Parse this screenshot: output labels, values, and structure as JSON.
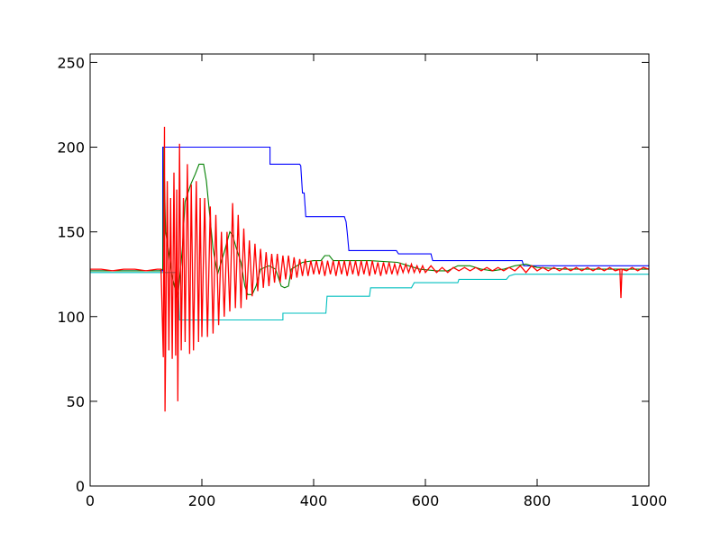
{
  "chart_data": {
    "type": "line",
    "title": "",
    "xlabel": "",
    "ylabel": "",
    "xlim": [
      0,
      1000
    ],
    "ylim": [
      0,
      255
    ],
    "xticks": [
      0,
      200,
      400,
      600,
      800,
      1000
    ],
    "yticks": [
      0,
      50,
      100,
      150,
      200,
      250
    ],
    "grid": false,
    "legend": "none",
    "series": [
      {
        "color": "#0000ff",
        "style": "step",
        "points": [
          [
            0,
            127
          ],
          [
            130,
            127
          ],
          [
            130,
            200
          ],
          [
            322,
            200
          ],
          [
            322,
            190
          ],
          [
            375,
            190
          ],
          [
            377,
            189
          ],
          [
            380,
            173
          ],
          [
            383,
            173
          ],
          [
            386,
            159
          ],
          [
            455,
            159
          ],
          [
            458,
            156
          ],
          [
            460,
            150
          ],
          [
            463,
            139
          ],
          [
            548,
            139
          ],
          [
            552,
            137
          ],
          [
            610,
            137
          ],
          [
            613,
            133
          ],
          [
            773,
            133
          ],
          [
            776,
            130
          ],
          [
            1000,
            130
          ]
        ]
      },
      {
        "color": "#00bfbf",
        "style": "step",
        "points": [
          [
            0,
            126
          ],
          [
            150,
            126
          ],
          [
            155,
            126
          ],
          [
            158,
            115
          ],
          [
            160,
            98
          ],
          [
            345,
            98
          ],
          [
            345,
            102
          ],
          [
            422,
            102
          ],
          [
            424,
            112
          ],
          [
            500,
            112
          ],
          [
            502,
            117
          ],
          [
            575,
            117
          ],
          [
            580,
            120
          ],
          [
            658,
            120
          ],
          [
            660,
            122
          ],
          [
            745,
            122
          ],
          [
            750,
            124
          ],
          [
            760,
            125
          ],
          [
            1000,
            125
          ]
        ]
      },
      {
        "color": "#008000",
        "style": "line",
        "points": [
          [
            0,
            127
          ],
          [
            125,
            127
          ],
          [
            130,
            128
          ],
          [
            132,
            200
          ],
          [
            135,
            150
          ],
          [
            140,
            140
          ],
          [
            146,
            125
          ],
          [
            155,
            112
          ],
          [
            158,
            115
          ],
          [
            165,
            140
          ],
          [
            170,
            168
          ],
          [
            180,
            178
          ],
          [
            188,
            184
          ],
          [
            195,
            190
          ],
          [
            203,
            190
          ],
          [
            208,
            180
          ],
          [
            214,
            160
          ],
          [
            220,
            140
          ],
          [
            228,
            125
          ],
          [
            240,
            138
          ],
          [
            250,
            150
          ],
          [
            255,
            148
          ],
          [
            262,
            140
          ],
          [
            270,
            132
          ],
          [
            277,
            118
          ],
          [
            282,
            113
          ],
          [
            290,
            113
          ],
          [
            297,
            118
          ],
          [
            305,
            128
          ],
          [
            320,
            130
          ],
          [
            332,
            128
          ],
          [
            342,
            118
          ],
          [
            348,
            117
          ],
          [
            355,
            118
          ],
          [
            360,
            128
          ],
          [
            380,
            132
          ],
          [
            400,
            133
          ],
          [
            413,
            133
          ],
          [
            420,
            136
          ],
          [
            428,
            136
          ],
          [
            435,
            133
          ],
          [
            500,
            133
          ],
          [
            550,
            132
          ],
          [
            570,
            130
          ],
          [
            590,
            128
          ],
          [
            620,
            127
          ],
          [
            640,
            127
          ],
          [
            658,
            130
          ],
          [
            680,
            130
          ],
          [
            700,
            128
          ],
          [
            720,
            127
          ],
          [
            740,
            128
          ],
          [
            760,
            130
          ],
          [
            780,
            131
          ],
          [
            800,
            129
          ],
          [
            850,
            128
          ],
          [
            900,
            128
          ],
          [
            1000,
            128
          ]
        ]
      },
      {
        "color": "#ff0000",
        "style": "line",
        "points": [
          [
            0,
            128
          ],
          [
            20,
            128
          ],
          [
            40,
            127
          ],
          [
            60,
            128
          ],
          [
            80,
            128
          ],
          [
            100,
            127
          ],
          [
            120,
            128
          ],
          [
            127,
            128
          ],
          [
            131,
            76
          ],
          [
            133,
            212
          ],
          [
            134,
            44
          ],
          [
            138,
            180
          ],
          [
            141,
            80
          ],
          [
            144,
            170
          ],
          [
            147,
            75
          ],
          [
            150,
            185
          ],
          [
            153,
            77
          ],
          [
            155,
            175
          ],
          [
            157,
            50
          ],
          [
            160,
            202
          ],
          [
            163,
            80
          ],
          [
            167,
            170
          ],
          [
            170,
            85
          ],
          [
            174,
            190
          ],
          [
            178,
            78
          ],
          [
            181,
            178
          ],
          [
            185,
            80
          ],
          [
            190,
            180
          ],
          [
            194,
            85
          ],
          [
            197,
            170
          ],
          [
            200,
            88
          ],
          [
            205,
            170
          ],
          [
            210,
            88
          ],
          [
            215,
            165
          ],
          [
            220,
            90
          ],
          [
            225,
            160
          ],
          [
            230,
            95
          ],
          [
            235,
            150
          ],
          [
            240,
            100
          ],
          [
            245,
            150
          ],
          [
            250,
            103
          ],
          [
            255,
            167
          ],
          [
            260,
            105
          ],
          [
            265,
            160
          ],
          [
            270,
            105
          ],
          [
            275,
            152
          ],
          [
            280,
            110
          ],
          [
            285,
            145
          ],
          [
            290,
            112
          ],
          [
            295,
            143
          ],
          [
            300,
            115
          ],
          [
            305,
            140
          ],
          [
            310,
            117
          ],
          [
            315,
            138
          ],
          [
            320,
            118
          ],
          [
            325,
            137
          ],
          [
            330,
            120
          ],
          [
            335,
            137
          ],
          [
            340,
            120
          ],
          [
            345,
            136
          ],
          [
            350,
            122
          ],
          [
            355,
            136
          ],
          [
            360,
            122
          ],
          [
            365,
            135
          ],
          [
            370,
            123
          ],
          [
            375,
            134
          ],
          [
            380,
            124
          ],
          [
            385,
            134
          ],
          [
            390,
            124
          ],
          [
            395,
            133
          ],
          [
            400,
            125
          ],
          [
            405,
            133
          ],
          [
            410,
            125
          ],
          [
            415,
            133
          ],
          [
            420,
            124
          ],
          [
            425,
            133
          ],
          [
            430,
            125
          ],
          [
            435,
            133
          ],
          [
            440,
            124
          ],
          [
            445,
            133
          ],
          [
            450,
            125
          ],
          [
            455,
            133
          ],
          [
            460,
            124
          ],
          [
            465,
            133
          ],
          [
            470,
            125
          ],
          [
            475,
            133
          ],
          [
            480,
            124
          ],
          [
            485,
            133
          ],
          [
            490,
            125
          ],
          [
            495,
            133
          ],
          [
            500,
            124
          ],
          [
            505,
            133
          ],
          [
            510,
            125
          ],
          [
            515,
            132
          ],
          [
            520,
            124
          ],
          [
            525,
            132
          ],
          [
            530,
            125
          ],
          [
            535,
            132
          ],
          [
            540,
            125
          ],
          [
            545,
            131
          ],
          [
            550,
            125
          ],
          [
            555,
            131
          ],
          [
            560,
            126
          ],
          [
            565,
            131
          ],
          [
            570,
            126
          ],
          [
            575,
            131
          ],
          [
            580,
            126
          ],
          [
            585,
            130
          ],
          [
            590,
            126
          ],
          [
            595,
            130
          ],
          [
            600,
            126
          ],
          [
            610,
            130
          ],
          [
            620,
            126
          ],
          [
            630,
            129
          ],
          [
            640,
            126
          ],
          [
            650,
            129
          ],
          [
            660,
            127
          ],
          [
            670,
            129
          ],
          [
            680,
            127
          ],
          [
            690,
            129
          ],
          [
            700,
            127
          ],
          [
            710,
            129
          ],
          [
            720,
            127
          ],
          [
            730,
            129
          ],
          [
            740,
            127
          ],
          [
            750,
            129
          ],
          [
            760,
            127
          ],
          [
            770,
            130
          ],
          [
            780,
            126
          ],
          [
            790,
            130
          ],
          [
            800,
            127
          ],
          [
            810,
            129
          ],
          [
            820,
            127
          ],
          [
            830,
            129
          ],
          [
            840,
            127
          ],
          [
            850,
            129
          ],
          [
            860,
            127
          ],
          [
            870,
            129
          ],
          [
            880,
            127
          ],
          [
            890,
            129
          ],
          [
            900,
            127
          ],
          [
            910,
            129
          ],
          [
            920,
            127
          ],
          [
            930,
            129
          ],
          [
            940,
            127
          ],
          [
            948,
            128
          ],
          [
            950,
            111
          ],
          [
            952,
            128
          ],
          [
            960,
            127
          ],
          [
            970,
            129
          ],
          [
            980,
            127
          ],
          [
            990,
            129
          ],
          [
            1000,
            128
          ]
        ]
      }
    ]
  }
}
